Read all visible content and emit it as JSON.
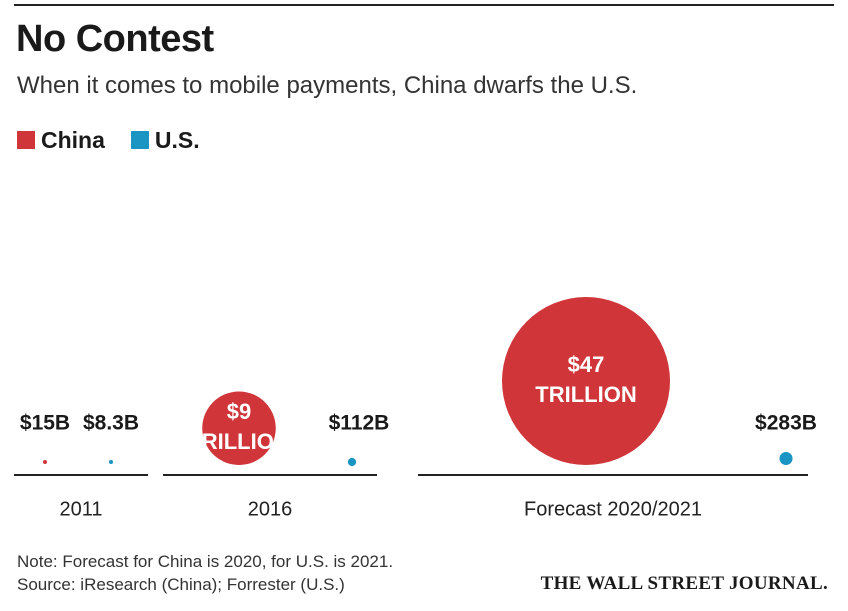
{
  "header": {
    "title": "No Contest",
    "subtitle": "When it comes to mobile payments, China dwarfs the U.S."
  },
  "legend": [
    {
      "label": "China",
      "color": "#d0353a"
    },
    {
      "label": "U.S.",
      "color": "#1a94c2"
    }
  ],
  "footer": {
    "note": "Note: Forecast for China is 2020, for U.S. is 2021.",
    "source": "Source: iResearch (China); Forrester (U.S.)",
    "publisher": "THE WALL STREET JOURNAL."
  },
  "chart_data": {
    "type": "bubble",
    "title": "No Contest",
    "subtitle": "When it comes to mobile payments, China dwarfs the U.S.",
    "unit": "USD",
    "categories": [
      "2011",
      "2016",
      "Forecast 2020/2021"
    ],
    "series": [
      {
        "name": "China",
        "color": "#d0353a",
        "values": [
          15000000000,
          9000000000000,
          47000000000000
        ],
        "labels": [
          [
            "$15B"
          ],
          [
            "$9",
            "TRILLION"
          ],
          [
            "$47",
            "TRILLION"
          ]
        ]
      },
      {
        "name": "U.S.",
        "color": "#1a94c2",
        "values": [
          8300000000,
          112000000000,
          283000000000
        ],
        "labels": [
          [
            "$8.3B"
          ],
          [
            "$112B"
          ],
          [
            "$283B"
          ]
        ]
      }
    ]
  }
}
